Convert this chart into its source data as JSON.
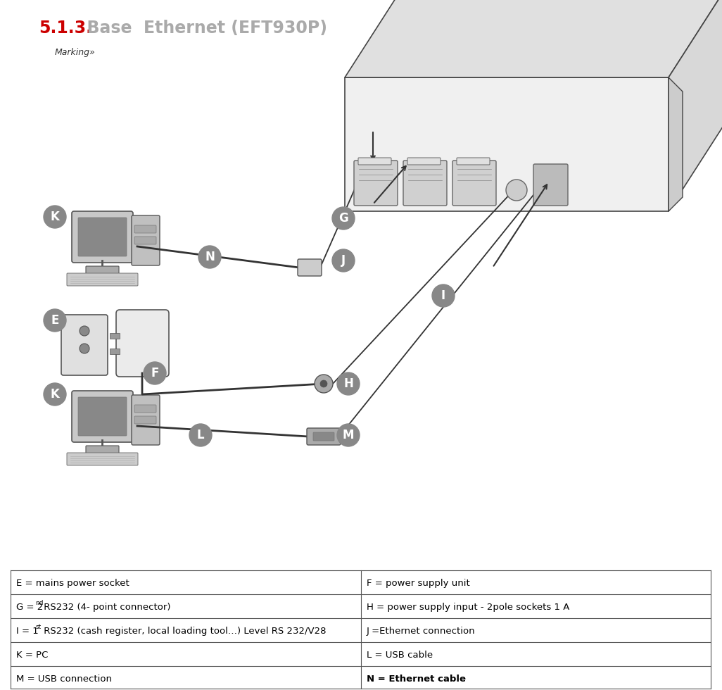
{
  "title_number": "5.1.3.",
  "title_number_color": "#cc0000",
  "title_text": "  Base  Ethernet (EFT930P)",
  "title_color": "#aaaaaa",
  "title_fontsize": 17,
  "marking_text": "Marking»",
  "background_color": "#ffffff",
  "label_bg_color": "#888888",
  "label_text_color": "#ffffff",
  "label_fontsize": 12,
  "table_rows": [
    [
      "E = mains power socket",
      "F = power supply unit"
    ],
    [
      "G = 2nd RS232 (4- point connector)",
      "H = power supply input - 2pole sockets 1 A"
    ],
    [
      "I = 1st RS232 (cash register, local loading tool…) Level RS 232/V28",
      "J =Ethernet connection"
    ],
    [
      "K = PC",
      "L = USB cable"
    ],
    [
      "M = USB connection",
      "N = Ethernet cable"
    ]
  ],
  "table_left_bold": [
    false,
    false,
    false,
    false,
    false
  ],
  "table_right_bold": [
    false,
    false,
    false,
    false,
    true
  ],
  "table_superscripts": [
    [
      "",
      ""
    ],
    [
      "nd",
      ""
    ],
    [
      "st",
      ""
    ],
    [
      "",
      ""
    ],
    [
      "",
      ""
    ]
  ]
}
